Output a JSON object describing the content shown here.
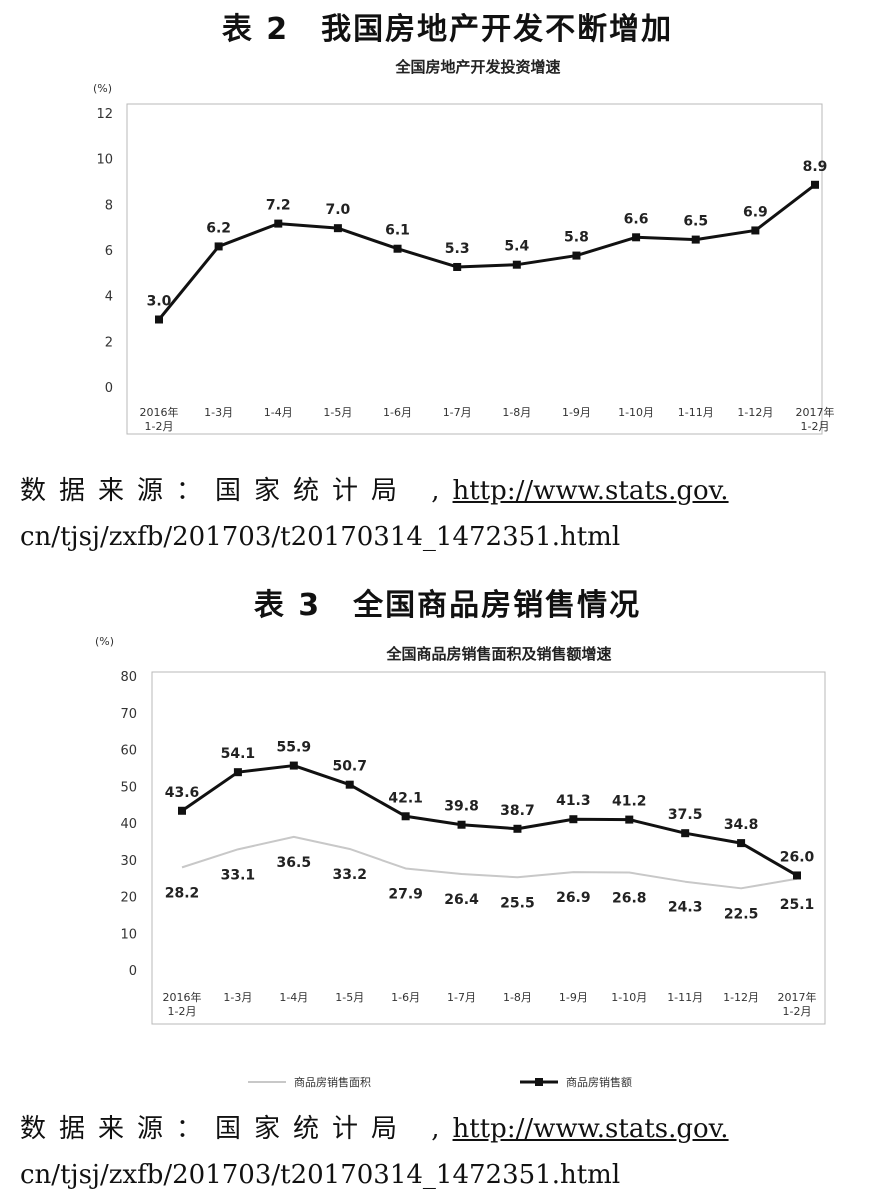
{
  "table2": {
    "heading": "表 2　我国房地产开发不断增加",
    "source_label": "数据来源：国家统计局 ,",
    "source_url_part1": "http://www.stats.gov.",
    "source_url_part2": "cn/tjsj/zxfb/201703/t20170314_1472351.html"
  },
  "table3": {
    "heading": "表 3　全国商品房销售情况",
    "source_label": "数据来源：国家统计局 ,",
    "source_url_part1": "http://www.stats.gov.",
    "source_url_part2": "cn/tjsj/zxfb/201703/t20170314_1472351.html"
  },
  "chart_data": [
    {
      "type": "line",
      "title": "全国房地产开发投资增速",
      "unit_label": "(%)",
      "categories": [
        "2016年\n1-2月",
        "1-3月",
        "1-4月",
        "1-5月",
        "1-6月",
        "1-7月",
        "1-8月",
        "1-9月",
        "1-10月",
        "1-11月",
        "1-12月",
        "2017年\n1-2月"
      ],
      "series": [
        {
          "values": [
            3.0,
            6.2,
            7.2,
            7.0,
            6.1,
            5.3,
            5.4,
            5.8,
            6.6,
            6.5,
            6.9,
            8.9
          ],
          "color": "#111111"
        }
      ],
      "ylim": [
        0,
        12
      ],
      "yticks": [
        0,
        2,
        4,
        6,
        8,
        10,
        12
      ],
      "grid": false,
      "legend": "none"
    },
    {
      "type": "line",
      "title": "全国商品房销售面积及销售额增速",
      "unit_label": "(%)",
      "categories": [
        "2016年\n1-2月",
        "1-3月",
        "1-4月",
        "1-5月",
        "1-6月",
        "1-7月",
        "1-8月",
        "1-9月",
        "1-10月",
        "1-11月",
        "1-12月",
        "2017年\n1-2月"
      ],
      "series": [
        {
          "name": "商品房销售面积",
          "values": [
            28.2,
            33.1,
            36.5,
            33.2,
            27.9,
            26.4,
            25.5,
            26.9,
            26.8,
            24.3,
            22.5,
            25.1
          ],
          "color": "#c8c8c8"
        },
        {
          "name": "商品房销售额",
          "values": [
            43.6,
            54.1,
            55.9,
            50.7,
            42.1,
            39.8,
            38.7,
            41.3,
            41.2,
            37.5,
            34.8,
            26.0
          ],
          "color": "#111111"
        }
      ],
      "ylim": [
        0,
        80
      ],
      "yticks": [
        0,
        10,
        20,
        30,
        40,
        50,
        60,
        70,
        80
      ],
      "grid": false,
      "legend": "bottom"
    }
  ]
}
